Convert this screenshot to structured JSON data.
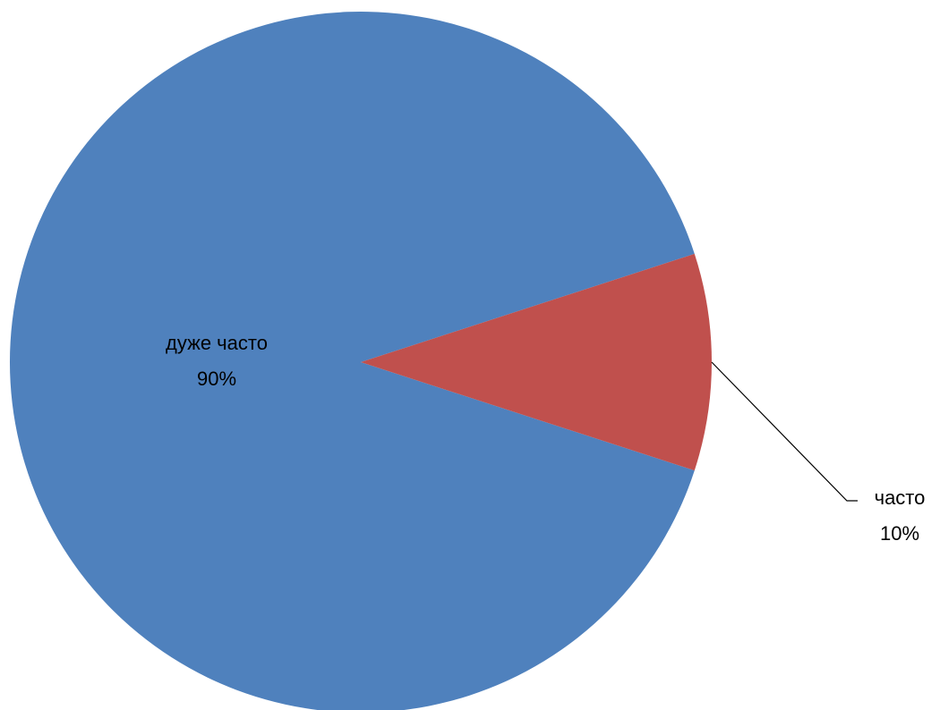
{
  "chart_data": {
    "type": "pie",
    "slices": [
      {
        "label": "дуже часто",
        "value": 90,
        "percent_label": "90%",
        "color": "#4F81BD"
      },
      {
        "label": "часто",
        "value": 10,
        "percent_label": "10%",
        "color": "#C0504D"
      }
    ],
    "start_angle_deg": 18,
    "direction": "counterclockwise",
    "labels": [
      {
        "slice": 0,
        "placement": "inside"
      },
      {
        "slice": 1,
        "placement": "outside-with-leader-line"
      }
    ]
  }
}
